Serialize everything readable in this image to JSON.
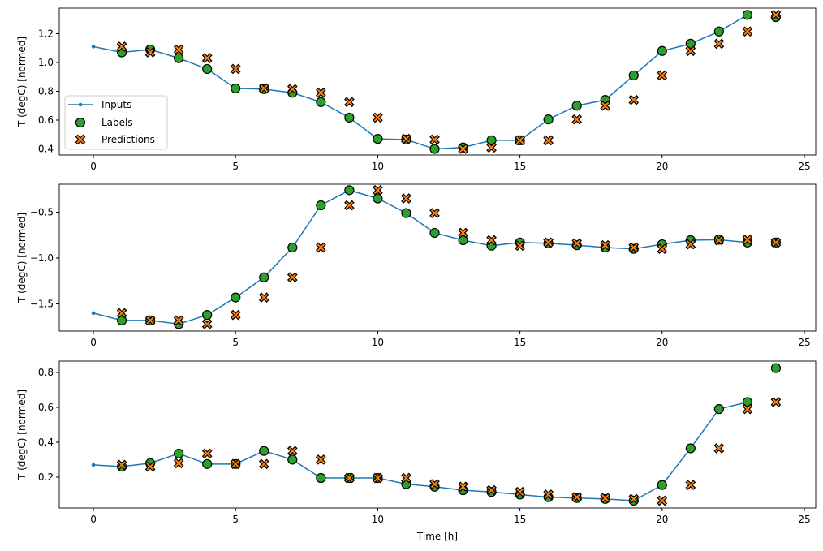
{
  "chart_data": {
    "type": "line",
    "xlabel": "Time [h]",
    "legend": {
      "placement": "lower-left",
      "entries": [
        "Inputs",
        "Labels",
        "Predictions"
      ]
    },
    "colors": {
      "inputs": "#1f77b4",
      "labels": "#2ca02c",
      "predictions": "#ff7f0e",
      "edge": "#000000"
    },
    "xlim": [
      -1.2,
      25.4
    ],
    "xticks": [
      0,
      5,
      10,
      15,
      20,
      25
    ],
    "grid": false,
    "panels": [
      {
        "ylabel": "T (degC) [normed]",
        "ylim": [
          0.358,
          1.377
        ],
        "yticks": [
          0.4,
          0.6,
          0.8,
          1.0,
          1.2
        ],
        "ytick_labels": [
          "0.4",
          "0.6",
          "0.8",
          "1.0",
          "1.2"
        ],
        "show_legend": true,
        "inputs": {
          "x": [
            0,
            1,
            2,
            3,
            4,
            5,
            6,
            7,
            8,
            9,
            10,
            11,
            12,
            13,
            14,
            15,
            16,
            17,
            18,
            19,
            20,
            21,
            22,
            23
          ],
          "y": [
            1.11,
            1.07,
            1.09,
            1.03,
            0.955,
            0.82,
            0.815,
            0.79,
            0.725,
            0.617,
            0.47,
            0.465,
            0.4,
            0.41,
            0.46,
            0.46,
            0.605,
            0.7,
            0.74,
            0.91,
            1.08,
            1.13,
            1.215,
            1.33
          ]
        },
        "labels": {
          "x": [
            1,
            2,
            3,
            4,
            5,
            6,
            7,
            8,
            9,
            10,
            11,
            12,
            13,
            14,
            15,
            16,
            17,
            18,
            19,
            20,
            21,
            22,
            23,
            24
          ],
          "y": [
            1.07,
            1.09,
            1.03,
            0.955,
            0.82,
            0.815,
            0.79,
            0.725,
            0.617,
            0.47,
            0.465,
            0.4,
            0.41,
            0.46,
            0.46,
            0.605,
            0.7,
            0.74,
            0.91,
            1.08,
            1.13,
            1.215,
            1.33,
            1.315
          ]
        },
        "predictions": {
          "x": [
            1,
            2,
            3,
            4,
            5,
            6,
            7,
            8,
            9,
            10,
            11,
            12,
            13,
            14,
            15,
            16,
            17,
            18,
            19,
            20,
            21,
            22,
            23,
            24
          ],
          "y": [
            1.11,
            1.07,
            1.09,
            1.03,
            0.955,
            0.82,
            0.815,
            0.79,
            0.725,
            0.617,
            0.47,
            0.465,
            0.4,
            0.41,
            0.46,
            0.46,
            0.605,
            0.7,
            0.74,
            0.91,
            1.08,
            1.13,
            1.215,
            1.33
          ]
        }
      },
      {
        "ylabel": "T (degC) [normed]",
        "ylim": [
          -1.796,
          -0.195
        ],
        "yticks": [
          -1.5,
          -1.0,
          -0.5
        ],
        "ytick_labels": [
          "−1.5",
          "−1.0",
          "−0.5"
        ],
        "show_legend": false,
        "inputs": {
          "x": [
            0,
            1,
            2,
            3,
            4,
            5,
            6,
            7,
            8,
            9,
            10,
            11,
            12,
            13,
            14,
            15,
            16,
            17,
            18,
            19,
            20,
            21,
            22,
            23
          ],
          "y": [
            -1.6,
            -1.68,
            -1.68,
            -1.72,
            -1.62,
            -1.43,
            -1.21,
            -0.885,
            -0.425,
            -0.26,
            -0.35,
            -0.51,
            -0.725,
            -0.805,
            -0.865,
            -0.83,
            -0.84,
            -0.86,
            -0.885,
            -0.9,
            -0.85,
            -0.805,
            -0.8,
            -0.83
          ]
        },
        "labels": {
          "x": [
            1,
            2,
            3,
            4,
            5,
            6,
            7,
            8,
            9,
            10,
            11,
            12,
            13,
            14,
            15,
            16,
            17,
            18,
            19,
            20,
            21,
            22,
            23,
            24
          ],
          "y": [
            -1.68,
            -1.68,
            -1.72,
            -1.62,
            -1.43,
            -1.21,
            -0.885,
            -0.425,
            -0.26,
            -0.35,
            -0.51,
            -0.725,
            -0.805,
            -0.865,
            -0.83,
            -0.84,
            -0.86,
            -0.885,
            -0.9,
            -0.85,
            -0.805,
            -0.8,
            -0.83,
            -0.83
          ]
        },
        "predictions": {
          "x": [
            1,
            2,
            3,
            4,
            5,
            6,
            7,
            8,
            9,
            10,
            11,
            12,
            13,
            14,
            15,
            16,
            17,
            18,
            19,
            20,
            21,
            22,
            23,
            24
          ],
          "y": [
            -1.6,
            -1.68,
            -1.68,
            -1.72,
            -1.62,
            -1.43,
            -1.21,
            -0.885,
            -0.425,
            -0.26,
            -0.35,
            -0.51,
            -0.725,
            -0.805,
            -0.865,
            -0.83,
            -0.84,
            -0.86,
            -0.885,
            -0.9,
            -0.85,
            -0.805,
            -0.8,
            -0.83
          ]
        }
      },
      {
        "ylabel": "T (degC) [normed]",
        "ylim": [
          0.023,
          0.865
        ],
        "yticks": [
          0.2,
          0.4,
          0.6,
          0.8
        ],
        "ytick_labels": [
          "0.2",
          "0.4",
          "0.6",
          "0.8"
        ],
        "show_legend": false,
        "inputs": {
          "x": [
            0,
            1,
            2,
            3,
            4,
            5,
            6,
            7,
            8,
            9,
            10,
            11,
            12,
            13,
            14,
            15,
            16,
            17,
            18,
            19,
            20,
            21,
            22,
            23
          ],
          "y": [
            0.27,
            0.26,
            0.28,
            0.335,
            0.275,
            0.275,
            0.35,
            0.3,
            0.195,
            0.195,
            0.195,
            0.16,
            0.145,
            0.125,
            0.115,
            0.1,
            0.085,
            0.08,
            0.075,
            0.065,
            0.155,
            0.365,
            0.59,
            0.63
          ]
        },
        "labels": {
          "x": [
            1,
            2,
            3,
            4,
            5,
            6,
            7,
            8,
            9,
            10,
            11,
            12,
            13,
            14,
            15,
            16,
            17,
            18,
            19,
            20,
            21,
            22,
            23,
            24
          ],
          "y": [
            0.26,
            0.28,
            0.335,
            0.275,
            0.275,
            0.35,
            0.3,
            0.195,
            0.195,
            0.195,
            0.16,
            0.145,
            0.125,
            0.115,
            0.1,
            0.085,
            0.08,
            0.075,
            0.065,
            0.155,
            0.365,
            0.59,
            0.63,
            0.825
          ]
        },
        "predictions": {
          "x": [
            1,
            2,
            3,
            4,
            5,
            6,
            7,
            8,
            9,
            10,
            11,
            12,
            13,
            14,
            15,
            16,
            17,
            18,
            19,
            20,
            21,
            22,
            23,
            24
          ],
          "y": [
            0.27,
            0.26,
            0.28,
            0.335,
            0.275,
            0.275,
            0.35,
            0.3,
            0.195,
            0.195,
            0.195,
            0.16,
            0.145,
            0.125,
            0.115,
            0.1,
            0.085,
            0.08,
            0.075,
            0.065,
            0.155,
            0.365,
            0.59,
            0.63
          ]
        }
      }
    ]
  }
}
